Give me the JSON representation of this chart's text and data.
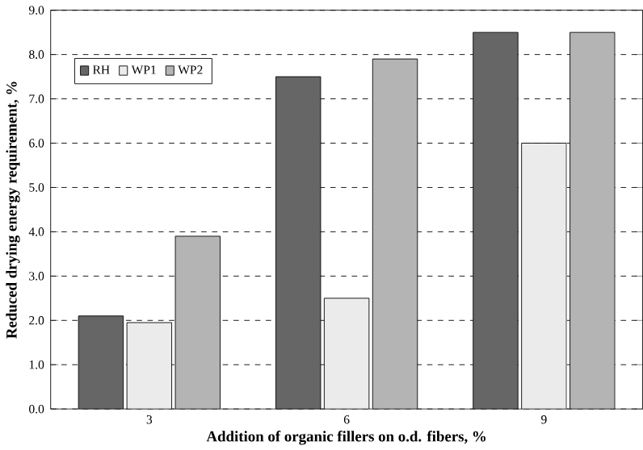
{
  "chart_data": {
    "type": "bar",
    "xlabel": "Addition of organic fillers on o.d. fibers, %",
    "ylabel": "Reduced drying energy requirement, %",
    "categories": [
      "3",
      "6",
      "9"
    ],
    "series": [
      {
        "name": "RH",
        "color": "#666666",
        "values": [
          2.1,
          7.5,
          8.5
        ]
      },
      {
        "name": "WP1",
        "color": "#ebebeb",
        "values": [
          1.95,
          2.5,
          6.0
        ]
      },
      {
        "name": "WP2",
        "color": "#b4b4b4",
        "values": [
          3.9,
          7.9,
          8.5
        ]
      }
    ],
    "ylim": [
      0,
      9
    ],
    "yticks": [
      {
        "value": 0,
        "label": "0.0"
      },
      {
        "value": 1,
        "label": "1.0"
      },
      {
        "value": 2,
        "label": "2.0"
      },
      {
        "value": 3,
        "label": "3.0"
      },
      {
        "value": 4,
        "label": "4.0"
      },
      {
        "value": 5,
        "label": "5.0"
      },
      {
        "value": 6,
        "label": "6.0"
      },
      {
        "value": 7,
        "label": "7.0"
      },
      {
        "value": 8,
        "label": "8.0"
      },
      {
        "value": 9,
        "label": "9.0"
      }
    ],
    "grid": "y",
    "legend": "top left"
  }
}
